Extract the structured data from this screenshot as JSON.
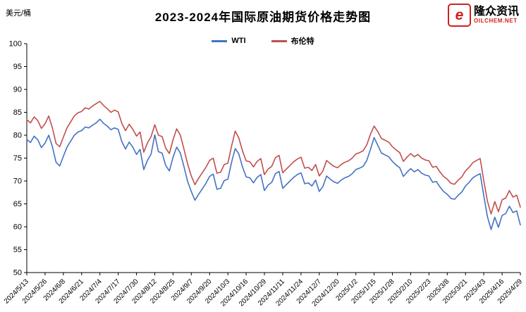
{
  "header": {
    "unit": "美元/桶",
    "title": "2023-2024年国际原油期货价格走势图"
  },
  "logo": {
    "mark": "e",
    "name": "隆众资讯",
    "site": "OILCHEM.NET",
    "brand_color": "#d0221c"
  },
  "chart_data": {
    "type": "line",
    "title": "2023-2024年国际原油期货价格走势图",
    "ylabel": "美元/桶",
    "ylim": [
      50,
      100
    ],
    "ytick_step": 5,
    "grid": false,
    "legend_position": "top-center",
    "categories": [
      "2024/5/13",
      "2024/5/26",
      "2024/6/8",
      "2024/6/21",
      "2024/7/4",
      "2024/7/17",
      "2024/7/30",
      "2024/8/12",
      "2024/8/25",
      "2024/9/7",
      "2024/9/20",
      "2024/10/3",
      "2024/10/16",
      "2024/10/29",
      "2024/11/11",
      "2024/11/24",
      "2024/12/7",
      "2024/12/20",
      "2025/1/2",
      "2025/1/15",
      "2025/1/28",
      "2025/2/10",
      "2025/2/23",
      "2025/3/8",
      "2025/3/21",
      "2025/4/3",
      "2025/4/16",
      "2025/4/29"
    ],
    "sampling_note": "daily settlement prices, points uniformly spaced across the category axis",
    "series": [
      {
        "name": "WTI",
        "color": "#4472c4",
        "values": [
          79.1,
          78.4,
          79.8,
          79.0,
          77.3,
          78.3,
          80.0,
          77.5,
          74.1,
          73.3,
          75.4,
          77.4,
          78.7,
          80.0,
          80.7,
          81.0,
          81.8,
          81.6,
          82.2,
          82.7,
          83.5,
          82.6,
          82.0,
          81.2,
          81.6,
          81.3,
          78.6,
          77.0,
          78.5,
          77.4,
          75.8,
          76.9,
          72.5,
          74.5,
          75.9,
          80.1,
          76.4,
          76.1,
          73.4,
          72.2,
          75.2,
          77.4,
          76.1,
          73.1,
          69.9,
          67.7,
          65.8,
          67.1,
          68.3,
          69.5,
          71.0,
          71.5,
          68.2,
          68.4,
          70.1,
          70.4,
          74.1,
          77.1,
          75.9,
          73.1,
          70.9,
          70.7,
          69.6,
          70.8,
          71.4,
          67.9,
          69.1,
          69.7,
          71.6,
          72.1,
          68.4,
          69.2,
          70.0,
          70.8,
          71.4,
          71.8,
          69.4,
          69.6,
          68.9,
          70.2,
          67.7,
          68.8,
          71.1,
          70.4,
          69.8,
          69.5,
          70.2,
          70.7,
          71.0,
          71.6,
          72.5,
          72.8,
          73.2,
          74.5,
          76.9,
          79.5,
          77.8,
          76.1,
          75.7,
          75.3,
          74.3,
          73.5,
          72.9,
          71.0,
          71.9,
          72.7,
          72.0,
          72.5,
          71.7,
          71.3,
          71.1,
          69.7,
          69.9,
          68.7,
          67.7,
          67.1,
          66.2,
          66.0,
          66.9,
          67.6,
          68.9,
          69.7,
          70.7,
          71.2,
          71.6,
          66.8,
          62.2,
          59.4,
          62.1,
          59.9,
          62.5,
          62.9,
          64.5,
          63.1,
          63.5,
          60.4
        ]
      },
      {
        "name": "布伦特",
        "color": "#c0504d",
        "values": [
          83.4,
          82.7,
          84.0,
          83.2,
          81.5,
          82.5,
          84.2,
          81.6,
          78.2,
          77.5,
          79.6,
          81.6,
          82.9,
          84.2,
          84.9,
          85.2,
          86.0,
          85.7,
          86.4,
          86.9,
          87.4,
          86.5,
          85.8,
          85.0,
          85.5,
          85.1,
          82.6,
          81.0,
          82.4,
          81.3,
          79.8,
          80.7,
          76.3,
          78.3,
          79.7,
          82.3,
          80.0,
          79.7,
          77.2,
          76.0,
          79.0,
          81.4,
          80.0,
          76.9,
          73.7,
          71.1,
          69.2,
          70.6,
          71.8,
          73.0,
          74.5,
          75.0,
          71.7,
          71.9,
          73.6,
          73.9,
          77.6,
          80.9,
          79.4,
          76.6,
          74.4,
          74.2,
          73.1,
          74.3,
          74.9,
          71.4,
          72.6,
          73.2,
          75.1,
          75.6,
          71.8,
          72.6,
          73.4,
          74.2,
          74.8,
          75.2,
          72.8,
          73.0,
          72.3,
          73.6,
          71.1,
          72.2,
          74.5,
          73.8,
          73.2,
          72.9,
          73.6,
          74.1,
          74.4,
          75.0,
          75.9,
          76.2,
          76.6,
          77.9,
          80.2,
          82.0,
          80.8,
          79.3,
          78.9,
          78.5,
          77.5,
          76.8,
          76.2,
          74.3,
          75.2,
          76.0,
          75.3,
          75.8,
          75.0,
          74.6,
          74.4,
          73.0,
          73.2,
          72.0,
          71.0,
          70.4,
          69.5,
          69.3,
          70.2,
          70.9,
          72.2,
          73.0,
          74.0,
          74.5,
          74.9,
          70.1,
          65.6,
          62.8,
          65.5,
          63.3,
          65.9,
          66.3,
          67.9,
          66.5,
          66.9,
          64.3
        ]
      }
    ]
  }
}
